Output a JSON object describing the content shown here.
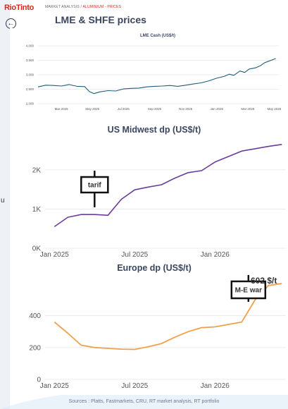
{
  "header": {
    "logo": "RioTinto",
    "breadcrumb_prefix": "MARKET ANALYSIS /",
    "breadcrumb_highlight": "ALUMINIUM - PRICES",
    "title": "LME & SHFE prices",
    "back_icon": "arrow-left-circle-icon"
  },
  "left_strip": {
    "visible_text": "u"
  },
  "footer": {
    "sources": "Sources : Platts, Fastmarkets, CRU, RT market analysis, RT portfolio"
  },
  "colors": {
    "lme_line": "#1f5d77",
    "us_line": "#6a3d9a",
    "eu_line": "#f0a04b",
    "brand": "#e2231a"
  },
  "chart_data": [
    {
      "type": "line",
      "title": "LME Cash (US$/t)",
      "xlabel": "",
      "ylabel": "",
      "x_ticks": [
        "Mar 2025",
        "May 2025",
        "Jul 2025",
        "Sep 2025",
        "Nov 2025",
        "Jan 2026",
        "Mar 2026",
        "May 2026"
      ],
      "y_ticks": [
        "2,000",
        "2,500",
        "3,000",
        "3,500",
        "4,000"
      ],
      "ylim": [
        2000,
        4000
      ],
      "x_range": [
        0,
        15.5
      ],
      "grid": true,
      "series": [
        {
          "x": [
            0,
            0.5,
            1,
            1.5,
            2,
            2.5,
            3,
            3.3,
            3.6,
            4,
            4.5,
            5,
            5.5,
            6,
            6.5,
            7,
            7.5,
            8,
            8.5,
            9,
            9.5,
            10,
            10.5,
            11,
            11.5,
            12,
            12.3,
            12.6,
            13,
            13.3,
            13.6,
            14,
            14.3,
            14.6,
            15,
            15.3
          ],
          "y": [
            2580,
            2640,
            2630,
            2610,
            2660,
            2600,
            2590,
            2420,
            2350,
            2410,
            2450,
            2440,
            2510,
            2530,
            2540,
            2580,
            2600,
            2610,
            2630,
            2600,
            2640,
            2680,
            2720,
            2790,
            2880,
            2950,
            3020,
            2980,
            3130,
            3080,
            3200,
            3240,
            3310,
            3420,
            3500,
            3560
          ]
        }
      ]
    },
    {
      "type": "line",
      "title": "US Midwest dp (US$/t)",
      "xlabel": "",
      "ylabel": "",
      "x_ticks": [
        "Jan 2025",
        "Jul 2025",
        "Jan 2026"
      ],
      "y_ticks": [
        "0K",
        "1K",
        "2K"
      ],
      "ylim": [
        0,
        2700
      ],
      "x_range": [
        -0.7,
        17.3
      ],
      "grid": true,
      "annotation": {
        "label": "tarif",
        "at_x": 3
      },
      "series": [
        {
          "x": [
            0,
            1,
            2,
            3,
            4,
            5,
            6,
            7,
            8,
            9,
            10,
            11,
            12,
            13,
            14,
            15,
            16,
            17
          ],
          "y": [
            550,
            790,
            860,
            860,
            840,
            1250,
            1490,
            1560,
            1620,
            1790,
            1930,
            1980,
            2200,
            2340,
            2480,
            2540,
            2600,
            2650
          ]
        }
      ]
    },
    {
      "type": "line",
      "title": "Europe dp (US$/t)",
      "xlabel": "",
      "ylabel": "",
      "x_ticks": [
        "Jan 2025",
        "Jul 2025",
        "Jan 2026"
      ],
      "y_ticks": [
        "0",
        "200",
        "400"
      ],
      "ylim": [
        0,
        620
      ],
      "x_range": [
        -0.7,
        17.3
      ],
      "grid": true,
      "annotation": {
        "label": "M-E war",
        "at_x": 14.5
      },
      "end_label": "602 $/t",
      "series": [
        {
          "x": [
            0,
            1,
            2,
            3,
            4,
            5,
            6,
            7,
            8,
            9,
            10,
            11,
            12,
            13,
            14,
            15,
            16,
            17
          ],
          "y": [
            360,
            290,
            215,
            200,
            195,
            190,
            188,
            205,
            225,
            265,
            300,
            325,
            330,
            345,
            360,
            500,
            590,
            602
          ]
        }
      ]
    }
  ]
}
